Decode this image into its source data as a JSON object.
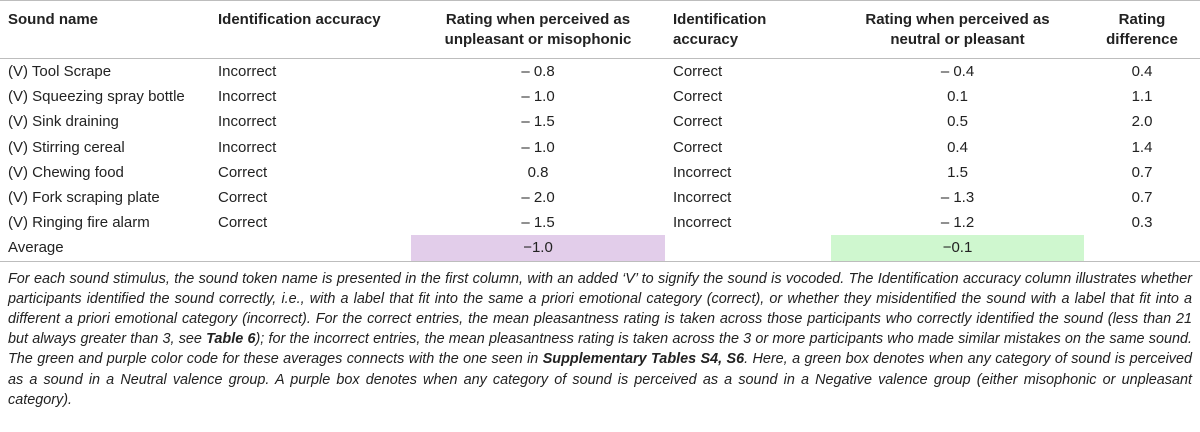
{
  "table": {
    "headers": [
      "Sound name",
      "Identification accuracy",
      "Rating when perceived as unpleasant or misophonic",
      "Identification accuracy",
      "Rating when perceived as neutral or pleasant",
      "Rating difference"
    ],
    "rows": [
      [
        "(V) Tool Scrape",
        "Incorrect",
        "– 0.8",
        "Correct",
        "– 0.4",
        "0.4"
      ],
      [
        "(V) Squeezing spray bottle",
        "Incorrect",
        "– 1.0",
        "Correct",
        "0.1",
        "1.1"
      ],
      [
        "(V) Sink draining",
        "Incorrect",
        "– 1.5",
        "Correct",
        "0.5",
        "2.0"
      ],
      [
        "(V) Stirring cereal",
        "Incorrect",
        "– 1.0",
        "Correct",
        "0.4",
        "1.4"
      ],
      [
        "(V) Chewing food",
        "Correct",
        "0.8",
        "Incorrect",
        "1.5",
        "0.7"
      ],
      [
        "(V) Fork scraping plate",
        "Correct",
        "– 2.0",
        "Incorrect",
        "– 1.3",
        "0.7"
      ],
      [
        "(V) Ringing fire alarm",
        "Correct",
        "– 1.5",
        "Incorrect",
        "– 1.2",
        "0.3"
      ]
    ],
    "average": {
      "label": "Average",
      "unpleasant_value": "−1.0",
      "neutral_value": "−0.1"
    },
    "colors": {
      "purple_box": "#e2cdea",
      "green_box": "#cff7cf"
    }
  },
  "caption": {
    "part1": "For each sound stimulus, the sound token name is presented in the first column, with an added ‘V’ to signify the sound is vocoded. The Identification accuracy column illustrates whether participants identified the sound correctly, i.e., with a label that fit into the same a priori emotional category (correct), or whether they misidentified the sound with a label that fit into a different a priori emotional category (incorrect). For the correct entries, the mean pleasantness rating is taken across those participants who correctly identified the sound (less than 21 but always greater than 3, see ",
    "ref1": "Table 6",
    "part2": "); for the incorrect entries, the mean pleasantness rating is taken across the 3 or more participants who made similar mistakes on the same sound. The green and purple color code for these averages connects with the one seen in ",
    "ref2": "Supplementary Tables S4, S6",
    "part3": ". Here, a green box denotes when any category of sound is perceived as a sound in a Neutral valence group. A purple box denotes when any category of sound is perceived as a sound in a Negative valence group (either misophonic or unpleasant category)."
  }
}
